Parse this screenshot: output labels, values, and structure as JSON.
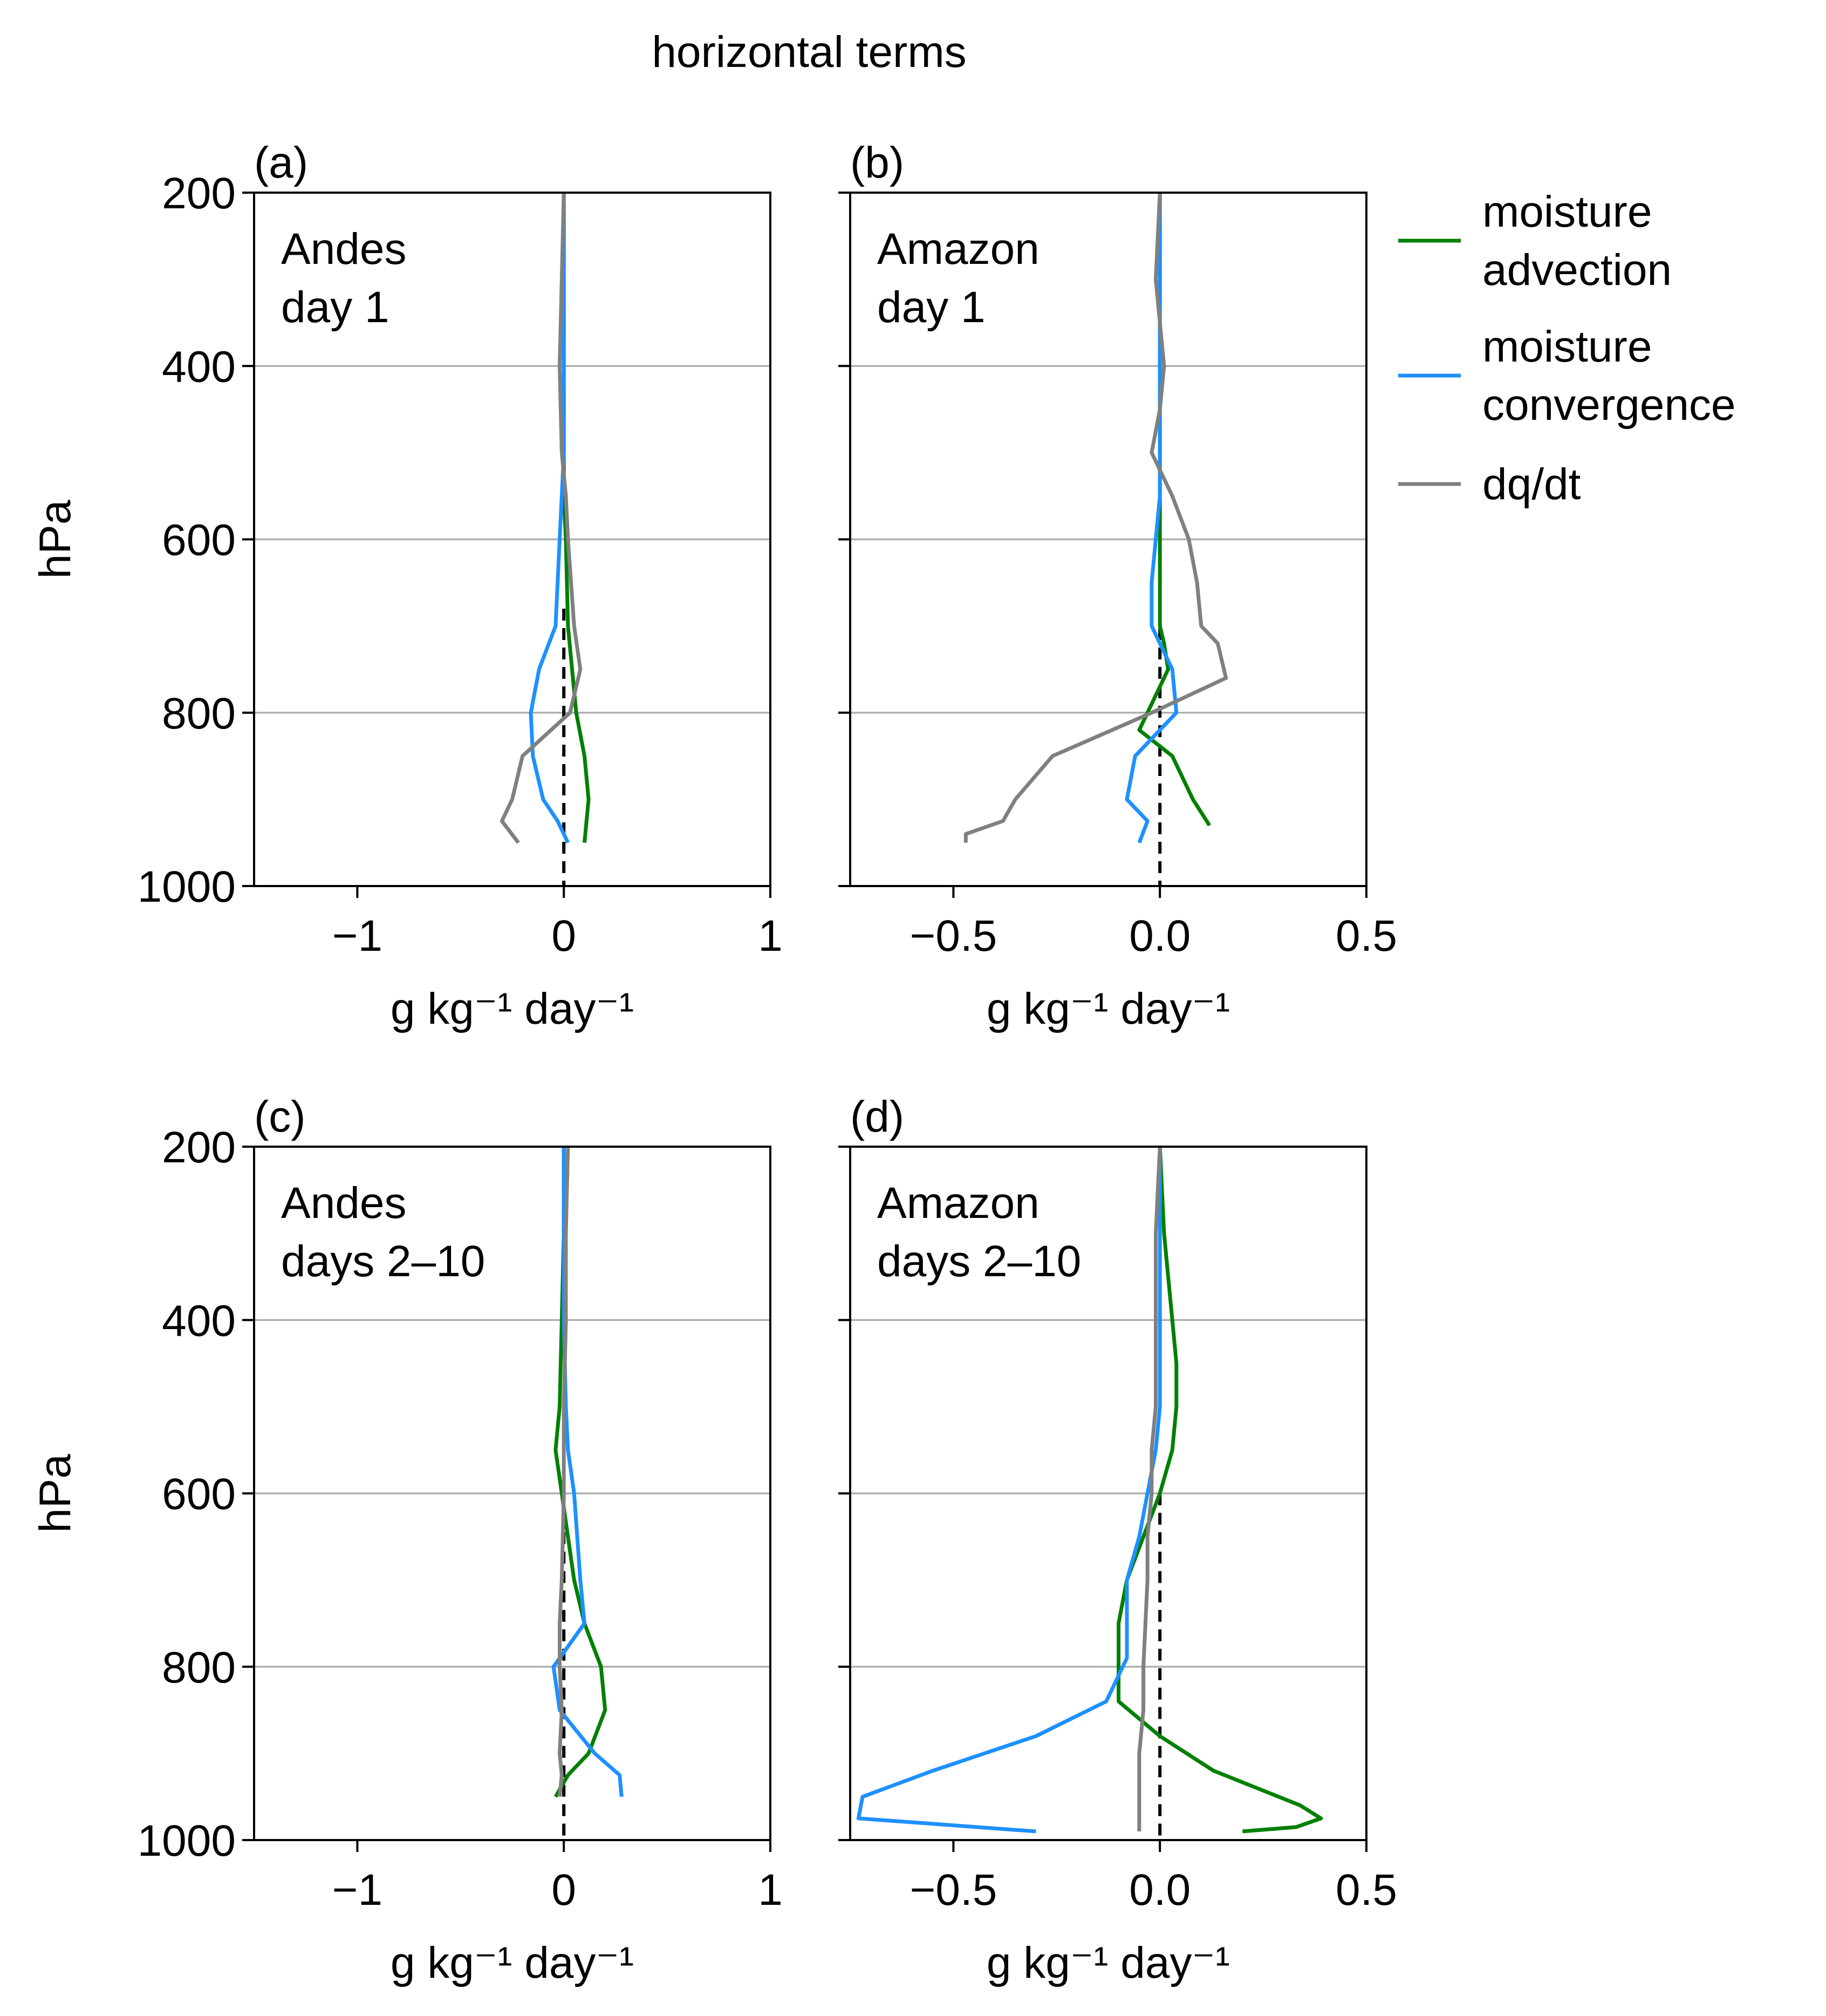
{
  "figure": {
    "title": "horizontal terms",
    "series_colors": {
      "moisture advection": "#008000",
      "moisture convergence": "#1e90ff",
      "dq/dt": "#808080",
      "zero line": "#000000"
    }
  },
  "legend": {
    "placement": "right of top panels",
    "entries": [
      {
        "label_lines": [
          "moisture",
          "advection"
        ],
        "color": "#008000"
      },
      {
        "label_lines": [
          "moisture",
          "convergence"
        ],
        "color": "#1e90ff"
      },
      {
        "label_lines": [
          "dq/dt"
        ],
        "color": "#808080"
      }
    ]
  },
  "chart_data": [
    {
      "type": "line",
      "panel_label": "(a)",
      "annotation": [
        "Andes",
        "day 1"
      ],
      "xlabel": "g kg⁻¹ day⁻¹",
      "ylabel": "hPa",
      "xlim": [
        -1.5,
        1.0
      ],
      "ylim": [
        1000,
        200
      ],
      "y_inverted": true,
      "xticks": [
        -1,
        0,
        1
      ],
      "xtick_labels": [
        "−1",
        "0",
        "1"
      ],
      "yticks": [
        200,
        400,
        600,
        800,
        1000
      ],
      "ytick_labels": [
        "200",
        "400",
        "600",
        "800",
        "1000"
      ],
      "grid": "horizontal",
      "zero_line": "dashed",
      "series": [
        {
          "name": "moisture advection",
          "color": "#008000",
          "x": [
            0.0,
            0.0,
            0.0,
            0.0,
            0.0,
            0.01,
            0.02,
            0.04,
            0.06,
            0.1,
            0.12,
            0.11,
            0.1
          ],
          "y": [
            200,
            300,
            400,
            500,
            550,
            600,
            700,
            750,
            800,
            850,
            900,
            925,
            950
          ]
        },
        {
          "name": "moisture convergence",
          "color": "#1e90ff",
          "x": [
            0.0,
            0.0,
            0.0,
            0.0,
            -0.01,
            -0.02,
            -0.04,
            -0.12,
            -0.16,
            -0.15,
            -0.1,
            -0.03,
            0.02
          ],
          "y": [
            200,
            300,
            400,
            500,
            550,
            600,
            700,
            750,
            800,
            850,
            900,
            925,
            950
          ]
        },
        {
          "name": "dq/dt",
          "color": "#808080",
          "x": [
            0.0,
            -0.01,
            -0.02,
            -0.01,
            0.01,
            0.02,
            0.05,
            0.08,
            0.03,
            -0.2,
            -0.25,
            -0.3,
            -0.22
          ],
          "y": [
            200,
            300,
            400,
            500,
            550,
            600,
            700,
            750,
            800,
            850,
            900,
            925,
            950
          ]
        }
      ]
    },
    {
      "type": "line",
      "panel_label": "(b)",
      "annotation": [
        "Amazon",
        "day 1"
      ],
      "xlabel": "g kg⁻¹ day⁻¹",
      "ylabel": "",
      "xlim": [
        -0.75,
        0.5
      ],
      "ylim": [
        1000,
        200
      ],
      "y_inverted": true,
      "xticks": [
        -0.5,
        0.0,
        0.5
      ],
      "xtick_labels": [
        "−0.5",
        "0.0",
        "0.5"
      ],
      "yticks": [
        200,
        400,
        600,
        800,
        1000
      ],
      "ytick_labels": [],
      "grid": "horizontal",
      "zero_line": "dashed",
      "series": [
        {
          "name": "moisture advection",
          "color": "#008000",
          "x": [
            0.0,
            0.0,
            0.0,
            0.0,
            0.0,
            0.0,
            0.0,
            0.0,
            0.01,
            0.02,
            -0.03,
            -0.05,
            0.03,
            0.08,
            0.12
          ],
          "y": [
            200,
            300,
            400,
            500,
            550,
            600,
            650,
            700,
            720,
            750,
            800,
            820,
            850,
            900,
            930
          ]
        },
        {
          "name": "moisture convergence",
          "color": "#1e90ff",
          "x": [
            0.0,
            0.0,
            0.0,
            0.0,
            0.0,
            -0.01,
            -0.02,
            -0.02,
            0.0,
            0.03,
            0.04,
            -0.06,
            -0.08,
            -0.03,
            -0.05
          ],
          "y": [
            200,
            300,
            400,
            500,
            550,
            600,
            650,
            700,
            720,
            750,
            800,
            850,
            900,
            925,
            950
          ]
        },
        {
          "name": "dq/dt",
          "color": "#808080",
          "x": [
            0.0,
            -0.01,
            0.01,
            0.0,
            -0.02,
            0.03,
            0.07,
            0.09,
            0.1,
            0.14,
            0.16,
            -0.02,
            -0.26,
            -0.35,
            -0.38,
            -0.47,
            -0.47
          ],
          "y": [
            200,
            300,
            400,
            450,
            500,
            550,
            600,
            650,
            700,
            720,
            760,
            800,
            850,
            900,
            925,
            940,
            950
          ]
        }
      ]
    },
    {
      "type": "line",
      "panel_label": "(c)",
      "annotation": [
        "Andes",
        "days 2–10"
      ],
      "xlabel": "g kg⁻¹ day⁻¹",
      "ylabel": "hPa",
      "xlim": [
        -1.5,
        1.0
      ],
      "ylim": [
        1000,
        200
      ],
      "y_inverted": true,
      "xticks": [
        -1,
        0,
        1
      ],
      "xtick_labels": [
        "−1",
        "0",
        "1"
      ],
      "yticks": [
        200,
        400,
        600,
        800,
        1000
      ],
      "ytick_labels": [
        "200",
        "400",
        "600",
        "800",
        "1000"
      ],
      "grid": "horizontal",
      "zero_line": "dashed",
      "series": [
        {
          "name": "moisture advection",
          "color": "#008000",
          "x": [
            0.0,
            0.0,
            -0.01,
            -0.02,
            -0.04,
            -0.01,
            0.05,
            0.1,
            0.18,
            0.2,
            0.12,
            0.02,
            -0.04
          ],
          "y": [
            200,
            300,
            400,
            500,
            550,
            600,
            700,
            750,
            800,
            850,
            900,
            925,
            950
          ]
        },
        {
          "name": "moisture convergence",
          "color": "#1e90ff",
          "x": [
            0.0,
            0.0,
            0.0,
            0.01,
            0.02,
            0.05,
            0.08,
            0.1,
            -0.05,
            -0.02,
            0.15,
            0.27,
            0.28
          ],
          "y": [
            200,
            300,
            400,
            500,
            550,
            600,
            700,
            750,
            800,
            850,
            900,
            925,
            950
          ]
        },
        {
          "name": "dq/dt",
          "color": "#808080",
          "x": [
            0.02,
            0.01,
            0.01,
            0.0,
            0.0,
            0.0,
            -0.01,
            -0.02,
            -0.02,
            -0.01,
            -0.02,
            -0.01,
            -0.02
          ],
          "y": [
            200,
            300,
            400,
            500,
            550,
            600,
            700,
            750,
            800,
            850,
            900,
            925,
            950
          ]
        }
      ]
    },
    {
      "type": "line",
      "panel_label": "(d)",
      "annotation": [
        "Amazon",
        "days 2–10"
      ],
      "xlabel": "g kg⁻¹ day⁻¹",
      "ylabel": "",
      "xlim": [
        -0.75,
        0.5
      ],
      "ylim": [
        1000,
        200
      ],
      "y_inverted": true,
      "xticks": [
        -0.5,
        0.0,
        0.5
      ],
      "xtick_labels": [
        "−0.5",
        "0.0",
        "0.5"
      ],
      "yticks": [
        200,
        400,
        600,
        800,
        1000
      ],
      "ytick_labels": [],
      "grid": "horizontal",
      "zero_line": "dashed",
      "series": [
        {
          "name": "moisture advection",
          "color": "#008000",
          "x": [
            0.0,
            0.01,
            0.03,
            0.04,
            0.04,
            0.03,
            0.0,
            -0.04,
            -0.08,
            -0.1,
            -0.1,
            0.0,
            0.13,
            0.34,
            0.39,
            0.33,
            0.2
          ],
          "y": [
            200,
            300,
            400,
            450,
            500,
            550,
            600,
            650,
            700,
            750,
            840,
            880,
            920,
            960,
            975,
            985,
            990
          ]
        },
        {
          "name": "moisture convergence",
          "color": "#1e90ff",
          "x": [
            0.0,
            0.0,
            0.0,
            0.0,
            -0.01,
            -0.03,
            -0.05,
            -0.08,
            -0.08,
            -0.13,
            -0.3,
            -0.55,
            -0.72,
            -0.73,
            -0.3
          ],
          "y": [
            200,
            300,
            400,
            500,
            550,
            600,
            650,
            700,
            790,
            840,
            880,
            920,
            950,
            975,
            990
          ]
        },
        {
          "name": "dq/dt",
          "color": "#808080",
          "x": [
            0.0,
            -0.01,
            -0.01,
            -0.01,
            -0.02,
            -0.02,
            -0.03,
            -0.03,
            -0.04,
            -0.04,
            -0.05,
            -0.05
          ],
          "y": [
            200,
            300,
            400,
            500,
            550,
            600,
            650,
            700,
            800,
            850,
            900,
            990
          ]
        }
      ]
    }
  ]
}
